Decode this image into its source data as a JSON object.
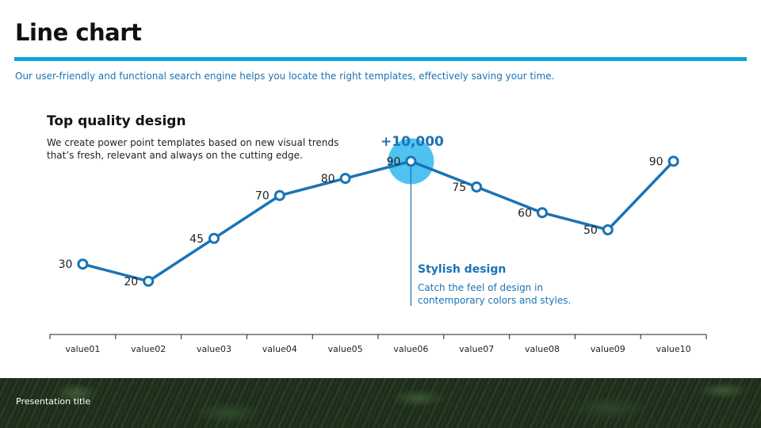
{
  "slide": {
    "title": "Line chart",
    "subtitle": "Our user-friendly and functional search engine helps you locate the right templates, effectively saving your time.",
    "intro_heading": "Top quality design",
    "intro_body": "We create power point templates based on new visual trends that’s fresh, relevant and always on the cutting edge.",
    "highlight_value": "+10,000",
    "callout_heading": "Stylish design",
    "callout_body": "Catch the feel of design in contemporary colors and styles.",
    "footer_text": "Presentation title"
  },
  "colors": {
    "accent_rule": "#0aa6e0",
    "line": "#1a73b5",
    "highlight_circle": "#4fc3f0",
    "text_blue": "#1a73b5"
  },
  "chart_data": {
    "type": "line",
    "categories": [
      "value01",
      "value02",
      "value03",
      "value04",
      "value05",
      "value06",
      "value07",
      "value08",
      "value09",
      "value10"
    ],
    "values": [
      30,
      20,
      45,
      70,
      80,
      90,
      75,
      60,
      50,
      90
    ],
    "highlighted_index": 5,
    "data_labels": true,
    "grid": false,
    "title": "",
    "xlabel": "",
    "ylabel": ""
  }
}
